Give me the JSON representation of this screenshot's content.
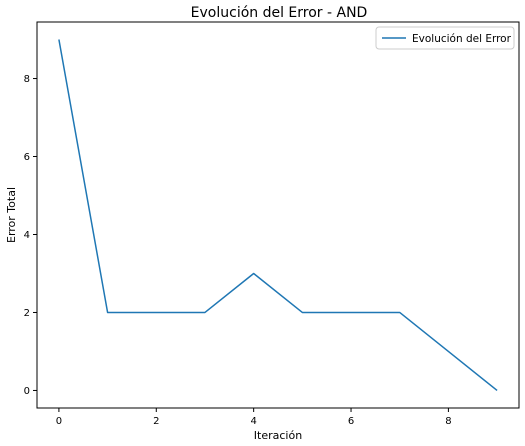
{
  "chart_data": {
    "type": "line",
    "title": "Evolución del Error - AND",
    "xlabel": "Iteración",
    "ylabel": "Error Total",
    "xlim": [
      -0.45,
      9.45
    ],
    "ylim": [
      -0.45,
      9.45
    ],
    "xticks": [
      0,
      2,
      4,
      6,
      8
    ],
    "yticks": [
      0,
      2,
      4,
      6,
      8
    ],
    "grid": false,
    "legend_position": "top-right",
    "series": [
      {
        "name": "Evolución del Error",
        "color": "#1f77b4",
        "x": [
          0,
          1,
          2,
          3,
          4,
          5,
          6,
          7,
          8,
          9
        ],
        "y": [
          9,
          2,
          2,
          2,
          3,
          2,
          2,
          2,
          1,
          0
        ]
      }
    ]
  }
}
